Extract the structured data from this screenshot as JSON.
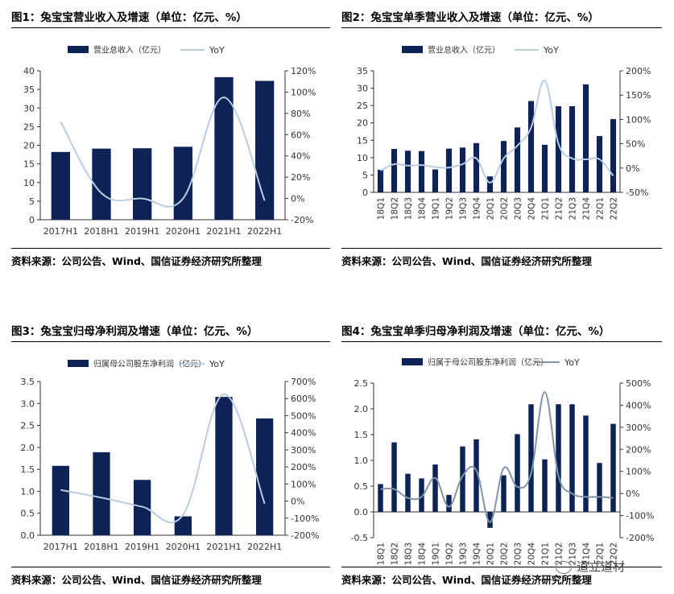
{
  "panels": [
    {
      "title": "图1：兔宝宝营业收入及增速（单位：亿元、%）",
      "source": "资料来源：公司公告、Wind、国信证券经济研究所整理"
    },
    {
      "title": "图2：兔宝宝单季营业收入及增速（单位：亿元、%）",
      "source": "资料来源：公司公告、Wind、国信证券经济研究所整理"
    },
    {
      "title": "图3：兔宝宝归母净利润及增速（单位：亿元、%）",
      "source": "资料来源：公司公告、Wind、国信证券经济研究所整理"
    },
    {
      "title": "图4：兔宝宝单季归母净利润及增速（单位：亿元、%）",
      "source": "资料来源：公司公告、Wind、国信证券经济研究所整理"
    }
  ],
  "watermark": "道立道材",
  "colors": {
    "bar": "#0d2356",
    "line1": "#b8cde2",
    "line4": "#8595a8"
  },
  "chart_data": [
    {
      "type": "bar",
      "categories": [
        "2017H1",
        "2018H1",
        "2019H1",
        "2020H1",
        "2021H1",
        "2022H1"
      ],
      "series": [
        {
          "name": "营业总收入（亿元）",
          "type": "bar",
          "axis": "left",
          "values": [
            18.2,
            19.1,
            19.2,
            19.6,
            38.3,
            37.3
          ]
        },
        {
          "name": "YoY",
          "type": "line",
          "axis": "right",
          "values": [
            72,
            5,
            0,
            0,
            95,
            -2
          ]
        }
      ],
      "ylim": [
        0,
        40
      ],
      "yticks": [
        0,
        5,
        10,
        15,
        20,
        25,
        30,
        35,
        40
      ],
      "y2lim": [
        -20,
        120
      ],
      "y2ticks": [
        -20,
        0,
        20,
        40,
        60,
        80,
        100,
        120
      ],
      "y2unit": "%",
      "legend": "top",
      "grid": false
    },
    {
      "type": "bar",
      "categories": [
        "18Q1",
        "18Q2",
        "18Q3",
        "18Q4",
        "19Q1",
        "19Q2",
        "19Q3",
        "19Q4",
        "20Q1",
        "20Q2",
        "20Q3",
        "20Q4",
        "21Q1",
        "21Q2",
        "21Q3",
        "21Q4",
        "22Q1",
        "22Q2"
      ],
      "series": [
        {
          "name": "营业总收入（亿元）",
          "type": "bar",
          "axis": "left",
          "values": [
            6.5,
            12.5,
            12.0,
            11.9,
            6.6,
            12.6,
            12.9,
            14.2,
            4.6,
            14.8,
            18.7,
            26.3,
            13.7,
            24.8,
            24.8,
            31.1,
            16.2,
            21.1
          ]
        },
        {
          "name": "YoY",
          "type": "line",
          "axis": "right",
          "values": [
            -5,
            8,
            5,
            6,
            2,
            1,
            8,
            20,
            -30,
            20,
            46,
            83,
            180,
            50,
            20,
            18,
            18,
            -16
          ]
        }
      ],
      "ylim": [
        0,
        35
      ],
      "yticks": [
        0.0,
        5.0,
        10.0,
        15.0,
        20.0,
        25.0,
        30.0,
        35.0
      ],
      "y2lim": [
        -50,
        200
      ],
      "y2ticks": [
        -50,
        0,
        50,
        100,
        150,
        200
      ],
      "y2unit": "%",
      "legend": "top",
      "grid": false
    },
    {
      "type": "bar",
      "categories": [
        "2017H1",
        "2018H1",
        "2019H1",
        "2020H1",
        "2021H1",
        "2022H1"
      ],
      "series": [
        {
          "name": "归属母公司股东净利润（亿元）",
          "type": "bar",
          "axis": "left",
          "values": [
            1.58,
            1.89,
            1.26,
            0.43,
            3.15,
            2.66
          ]
        },
        {
          "name": "YoY",
          "type": "line",
          "axis": "right",
          "values": [
            65,
            20,
            -33,
            -80,
            625,
            -15
          ]
        }
      ],
      "ylim": [
        0,
        3.5
      ],
      "yticks": [
        0.0,
        0.5,
        1.0,
        1.5,
        2.0,
        2.5,
        3.0,
        3.5
      ],
      "y2lim": [
        -200,
        700
      ],
      "y2ticks": [
        -200,
        -100,
        0,
        100,
        200,
        300,
        400,
        500,
        600,
        700
      ],
      "y2unit": "%",
      "legend": "top",
      "grid": false
    },
    {
      "type": "bar",
      "categories": [
        "18Q1",
        "18Q2",
        "18Q3",
        "18Q4",
        "19Q1",
        "19Q2",
        "19Q3",
        "19Q4",
        "20Q1",
        "20Q2",
        "20Q3",
        "20Q4",
        "21Q1",
        "21Q2",
        "21Q3",
        "21Q4",
        "22Q1",
        "22Q2"
      ],
      "series": [
        {
          "name": "归属于母公司股东净利润（亿元）",
          "type": "bar",
          "axis": "left",
          "values": [
            0.54,
            1.35,
            0.74,
            0.65,
            0.92,
            0.33,
            1.27,
            1.41,
            -0.31,
            0.71,
            1.51,
            2.09,
            1.02,
            2.09,
            2.09,
            1.87,
            0.95,
            1.71
          ]
        },
        {
          "name": "YoY",
          "type": "line",
          "axis": "right",
          "values": [
            20,
            20,
            -20,
            -15,
            70,
            -60,
            80,
            105,
            -130,
            115,
            30,
            90,
            460,
            80,
            0,
            -15,
            -15,
            -20
          ]
        }
      ],
      "ylim": [
        -0.5,
        2.5
      ],
      "yticks": [
        -0.5,
        0.0,
        0.5,
        1.0,
        1.5,
        2.0,
        2.5
      ],
      "y2lim": [
        -200,
        500
      ],
      "y2ticks": [
        -200,
        -100,
        0,
        100,
        200,
        300,
        400,
        500
      ],
      "y2unit": "%",
      "legend": "top",
      "grid": false
    }
  ]
}
